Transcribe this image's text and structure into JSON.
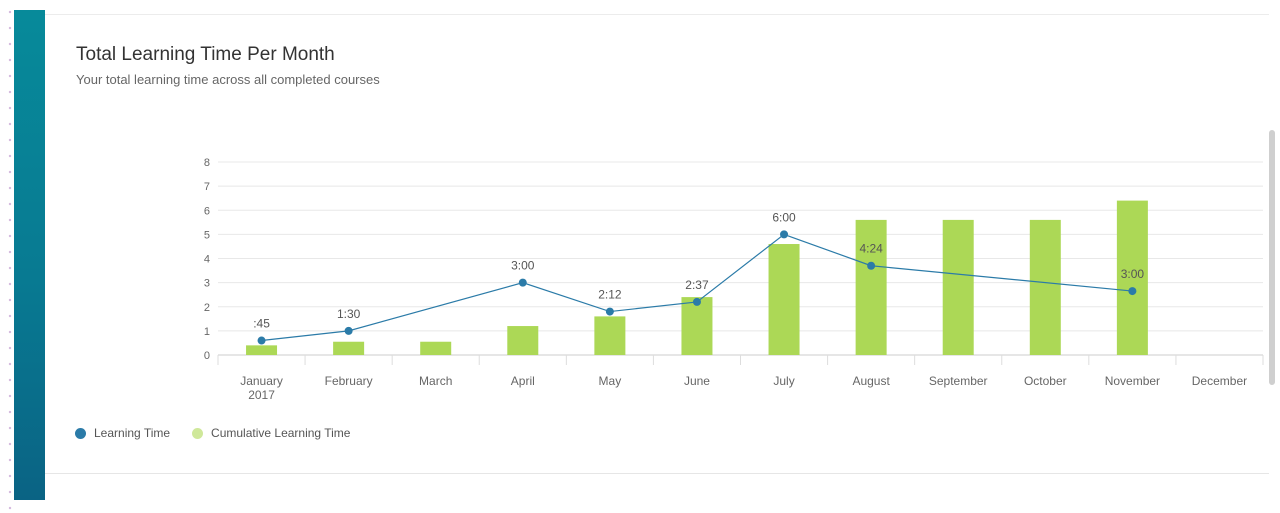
{
  "card": {
    "title": "Total Learning Time Per Month",
    "subtitle": "Your total learning time across all completed courses"
  },
  "colors": {
    "accent_bar": "#0a7f95",
    "line_series": "#2b7ba8",
    "bar_series": "#acd856",
    "legend_bar_dot": "#cfe89a"
  },
  "legend": {
    "items": [
      {
        "label": "Learning Time",
        "icon": "dot-marker"
      },
      {
        "label": "Cumulative Learning Time",
        "icon": "dot-marker"
      }
    ]
  },
  "chart_data": {
    "type": "bar",
    "title": "Total Learning Time Per Month",
    "subtitle": "Your total learning time across all completed courses",
    "categories": [
      "January 2017",
      "February",
      "March",
      "April",
      "May",
      "June",
      "July",
      "August",
      "September",
      "October",
      "November",
      "December"
    ],
    "y_ticks": [
      0,
      1,
      2,
      3,
      4,
      5,
      6,
      7,
      8
    ],
    "ylim": [
      0,
      8
    ],
    "grid": true,
    "legend_position": "bottom-left",
    "series": [
      {
        "name": "Learning Time",
        "type": "line",
        "points": [
          {
            "category": "January 2017",
            "value": 0.6,
            "label": ":45"
          },
          {
            "category": "February",
            "value": 1.0,
            "label": "1:30"
          },
          {
            "category": "April",
            "value": 3.0,
            "label": "3:00"
          },
          {
            "category": "May",
            "value": 1.8,
            "label": "2:12"
          },
          {
            "category": "June",
            "value": 2.2,
            "label": "2:37"
          },
          {
            "category": "July",
            "value": 5.0,
            "label": "6:00"
          },
          {
            "category": "August",
            "value": 3.7,
            "label": "4:24"
          },
          {
            "category": "November",
            "value": 2.65,
            "label": "3:00"
          }
        ]
      },
      {
        "name": "Cumulative Learning Time",
        "type": "bar",
        "values": [
          0.4,
          0.55,
          0.55,
          1.2,
          1.6,
          2.4,
          4.6,
          5.6,
          5.6,
          5.6,
          6.4,
          null
        ]
      }
    ]
  }
}
